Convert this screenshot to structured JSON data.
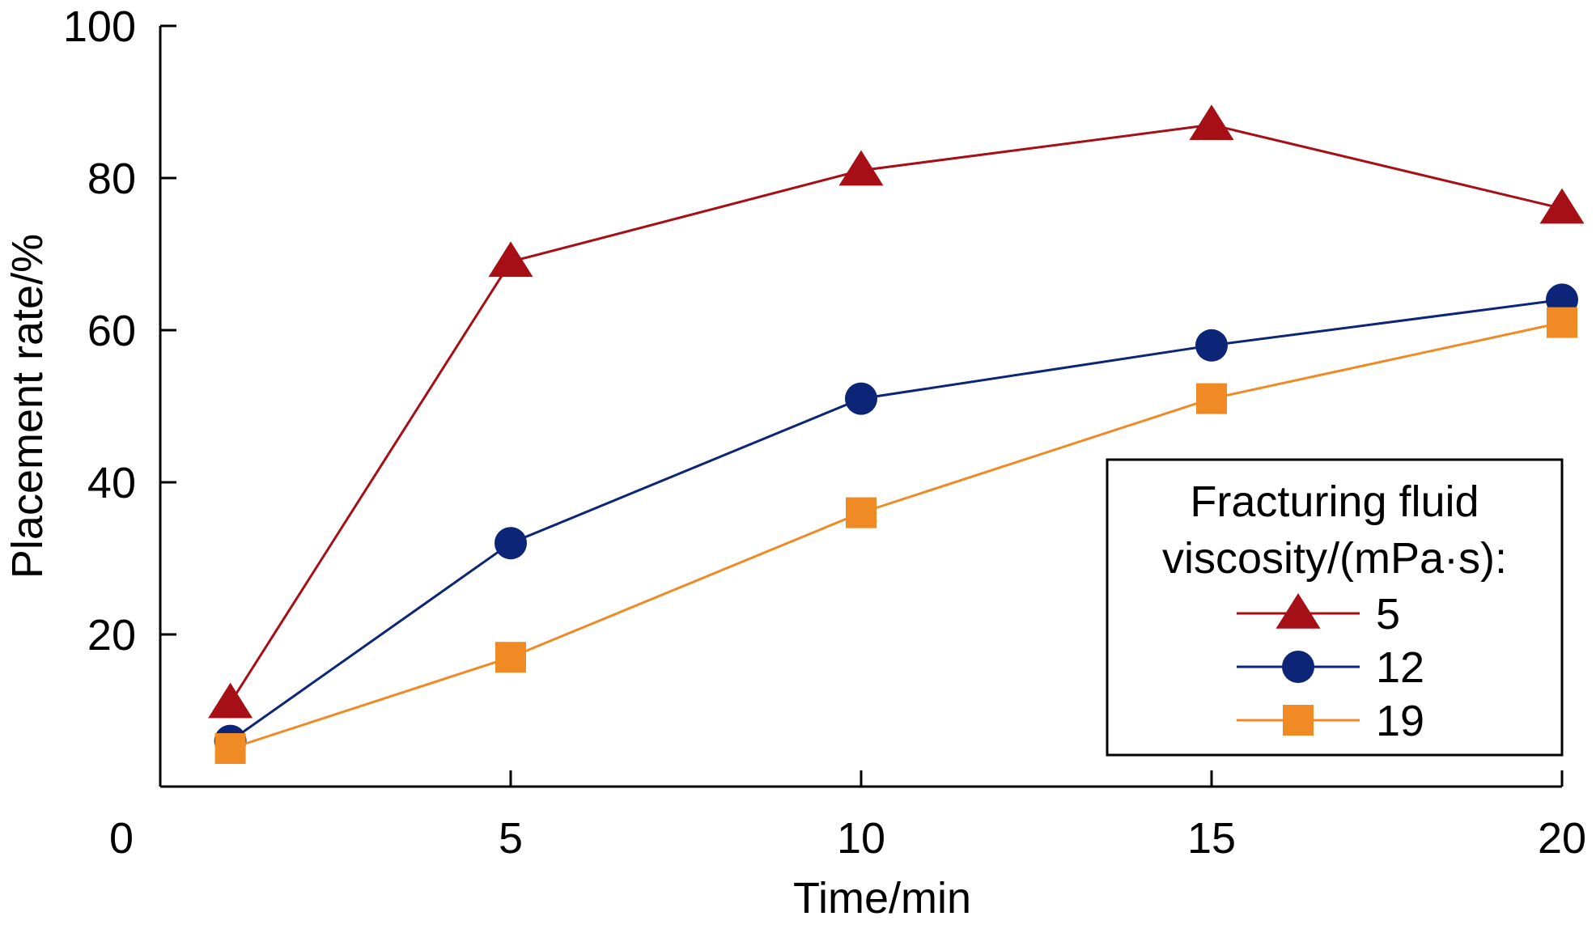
{
  "chart_data": {
    "type": "line",
    "xlabel": "Time/min",
    "ylabel": "Placement rate/%",
    "xlim": [
      0,
      20
    ],
    "ylim": [
      0,
      100
    ],
    "x_origin_label": "0",
    "xticks": [
      5,
      10,
      15,
      20
    ],
    "yticks": [
      20,
      40,
      60,
      80,
      100
    ],
    "grid": false,
    "legend": {
      "placement": "bottom-right",
      "title_line1": "Fracturing fluid",
      "title_line2": "viscosity/(mPa·s):"
    },
    "series": [
      {
        "name": "5",
        "marker": "triangle",
        "color": "#a50f15",
        "x": [
          1,
          5,
          10,
          15,
          20
        ],
        "y": [
          11,
          69,
          81,
          87,
          76
        ]
      },
      {
        "name": "12",
        "marker": "circle",
        "color": "#0c2577",
        "x": [
          1,
          5,
          10,
          15,
          20
        ],
        "y": [
          6,
          32,
          51,
          58,
          64
        ]
      },
      {
        "name": "19",
        "marker": "square",
        "color": "#f08a24",
        "x": [
          1,
          5,
          10,
          15,
          20
        ],
        "y": [
          5,
          17,
          36,
          51,
          61
        ]
      }
    ]
  }
}
